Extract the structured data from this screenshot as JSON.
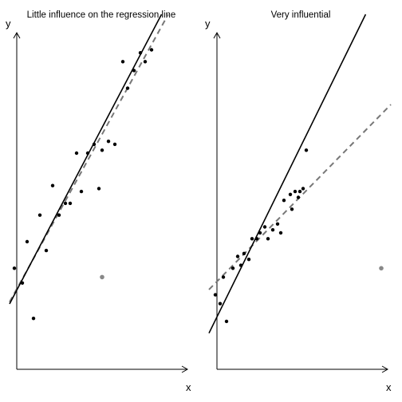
{
  "chart_data": [
    {
      "type": "scatter",
      "title": "Little influence on the regression line",
      "xlabel": "x",
      "ylabel": "y",
      "xlim": [
        0,
        10
      ],
      "ylim": [
        0,
        10
      ],
      "points": [
        {
          "x": 0.0,
          "y": 2.1
        },
        {
          "x": 0.5,
          "y": 1.6
        },
        {
          "x": 0.8,
          "y": 3.0
        },
        {
          "x": 1.2,
          "y": 0.4
        },
        {
          "x": 1.6,
          "y": 3.9
        },
        {
          "x": 2.0,
          "y": 2.7
        },
        {
          "x": 2.4,
          "y": 4.9
        },
        {
          "x": 2.8,
          "y": 3.9
        },
        {
          "x": 3.2,
          "y": 4.3
        },
        {
          "x": 3.5,
          "y": 4.3
        },
        {
          "x": 3.9,
          "y": 6.0
        },
        {
          "x": 4.2,
          "y": 4.7
        },
        {
          "x": 4.6,
          "y": 6.0
        },
        {
          "x": 5.0,
          "y": 6.3
        },
        {
          "x": 5.3,
          "y": 4.8
        },
        {
          "x": 5.5,
          "y": 6.1
        },
        {
          "x": 5.9,
          "y": 6.4
        },
        {
          "x": 6.3,
          "y": 6.3
        },
        {
          "x": 6.8,
          "y": 9.1
        },
        {
          "x": 7.1,
          "y": 8.2
        },
        {
          "x": 7.5,
          "y": 8.8
        },
        {
          "x": 7.9,
          "y": 9.4
        },
        {
          "x": 8.2,
          "y": 9.1
        },
        {
          "x": 8.6,
          "y": 9.5
        }
      ],
      "influential_point": {
        "x": 5.5,
        "y": 1.8
      },
      "fit_with": {
        "intercept": 1.2,
        "slope": 1.03
      },
      "fit_without": {
        "intercept": 1.25,
        "slope": 0.98
      },
      "colors": {
        "points": "#000000",
        "influential": "#888888",
        "fit_with": "#000000",
        "fit_without": "#777777"
      }
    },
    {
      "type": "scatter",
      "title": "Very influential",
      "xlabel": "x",
      "ylabel": "y",
      "xlim": [
        0,
        10
      ],
      "ylim": [
        0,
        10
      ],
      "points": [
        {
          "x": -0.1,
          "y": 1.2
        },
        {
          "x": 0.2,
          "y": 0.9
        },
        {
          "x": 0.4,
          "y": 1.8
        },
        {
          "x": 0.6,
          "y": 0.3
        },
        {
          "x": 1.0,
          "y": 2.1
        },
        {
          "x": 1.3,
          "y": 2.5
        },
        {
          "x": 1.5,
          "y": 2.2
        },
        {
          "x": 1.7,
          "y": 2.6
        },
        {
          "x": 2.0,
          "y": 2.4
        },
        {
          "x": 2.2,
          "y": 3.1
        },
        {
          "x": 2.5,
          "y": 3.1
        },
        {
          "x": 2.7,
          "y": 3.3
        },
        {
          "x": 3.0,
          "y": 3.5
        },
        {
          "x": 3.2,
          "y": 3.1
        },
        {
          "x": 3.5,
          "y": 3.4
        },
        {
          "x": 3.8,
          "y": 3.6
        },
        {
          "x": 4.0,
          "y": 3.3
        },
        {
          "x": 4.2,
          "y": 4.4
        },
        {
          "x": 4.6,
          "y": 4.6
        },
        {
          "x": 4.7,
          "y": 4.1
        },
        {
          "x": 4.9,
          "y": 4.7
        },
        {
          "x": 5.1,
          "y": 4.5
        },
        {
          "x": 5.2,
          "y": 4.7
        },
        {
          "x": 5.4,
          "y": 4.8
        },
        {
          "x": 5.6,
          "y": 6.1
        }
      ],
      "influential_point": {
        "x": 10.3,
        "y": 2.1
      },
      "fit_with": {
        "intercept": 1.65,
        "slope": 0.55
      },
      "fit_without": {
        "intercept": 0.45,
        "slope": 1.1
      },
      "colors": {
        "points": "#000000",
        "influential": "#888888",
        "fit_with": "#777777",
        "fit_without": "#000000"
      }
    }
  ]
}
